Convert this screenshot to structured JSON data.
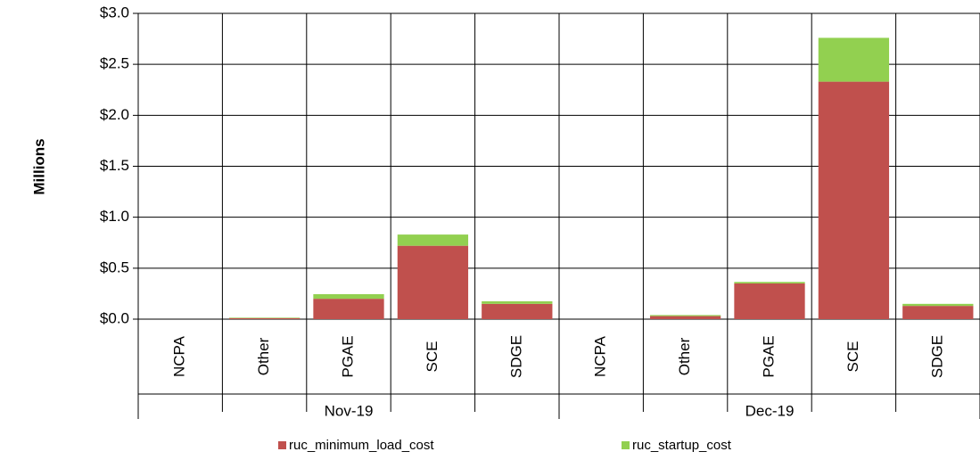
{
  "chart_data": {
    "type": "stacked-bar",
    "y_label": "Millions",
    "groups": [
      "Nov-19",
      "Dec-19"
    ],
    "categories": [
      "NCPA",
      "Other",
      "PGAE",
      "SCE",
      "SDGE",
      "NCPA",
      "Other",
      "PGAE",
      "SCE",
      "SDGE"
    ],
    "series": [
      {
        "name": "ruc_minimum_load_cost",
        "color": "#c0504d",
        "values": [
          0,
          0.01,
          0.2,
          0.72,
          0.15,
          0,
          0.03,
          0.35,
          2.33,
          0.13
        ]
      },
      {
        "name": "ruc_startup_cost",
        "color": "#92d050",
        "values": [
          0,
          0.005,
          0.045,
          0.11,
          0.025,
          0,
          0.01,
          0.015,
          0.43,
          0.02
        ]
      }
    ],
    "ylim": [
      0,
      3
    ],
    "yticks": [
      {
        "value": 0,
        "label": "$0.0"
      },
      {
        "value": 0.5,
        "label": "$0.5"
      },
      {
        "value": 1,
        "label": "$1.0"
      },
      {
        "value": 1.5,
        "label": "$1.5"
      },
      {
        "value": 2,
        "label": "$2.0"
      },
      {
        "value": 2.5,
        "label": "$2.5"
      },
      {
        "value": 3,
        "label": "$3.0"
      }
    ],
    "grid": true,
    "legend": "bottom"
  }
}
